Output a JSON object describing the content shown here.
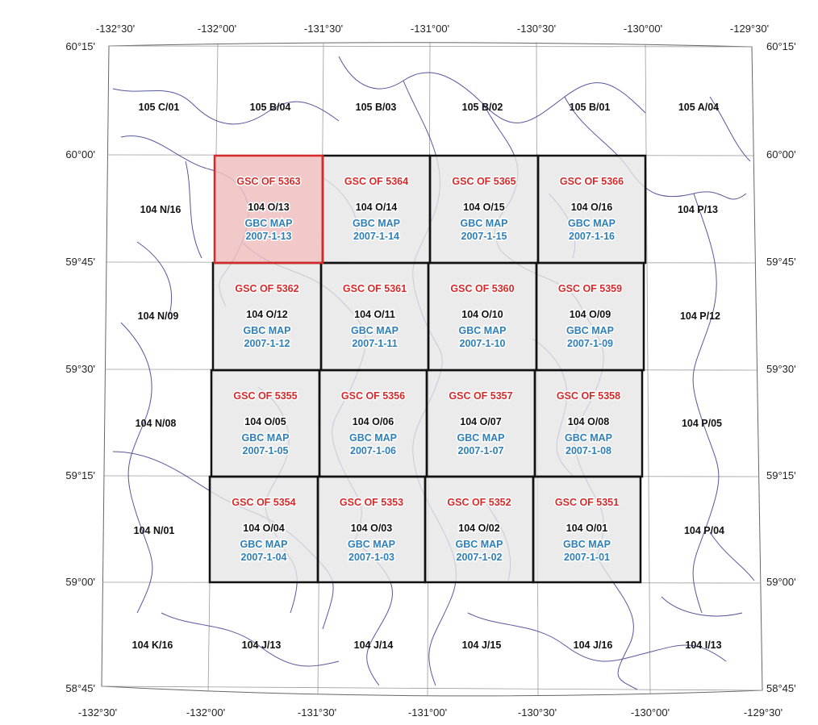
{
  "colors": {
    "tile_fill": "#e6e6e6",
    "selected_fill": "#f0c0c0",
    "selected_border": "#d62a2a",
    "tile_border": "#111111",
    "rivers": "#3a3a8c",
    "gsc_text": "#d62a2a",
    "gbc_text": "#2f7fb8"
  },
  "top_longitudes": [
    "-132°30'",
    "-132°00'",
    "-131°30'",
    "-131°00'",
    "-130°30'",
    "-130°00'",
    "-129°30'"
  ],
  "bottom_longitudes": [
    "-132°30'",
    "-132°00'",
    "-131°30'",
    "-131°00'",
    "-130°30'",
    "-130°00'",
    "-129°30'"
  ],
  "latitudes": [
    "60°15'",
    "60°00'",
    "59°45'",
    "59°30'",
    "59°15'",
    "59°00'",
    "58°45'"
  ],
  "outer_sheets": {
    "top": [
      "105 C/01",
      "105 B/04",
      "105 B/03",
      "105 B/02",
      "105 B/01",
      "105 A/04"
    ],
    "bottom": [
      "104 K/16",
      "104 J/13",
      "104 J/14",
      "104 J/15",
      "104 J/16",
      "104 I/13"
    ],
    "left": [
      "104 N/16",
      "104 N/09",
      "104 N/08",
      "104 N/01"
    ],
    "right": [
      "104 P/13",
      "104 P/12",
      "104 P/05",
      "104 P/04"
    ]
  },
  "tiles": [
    [
      {
        "gsc": "GSC OF 5363",
        "nts": "104 O/13",
        "gbc1": "GBC MAP",
        "gbc2": "2007-1-13",
        "selected": true
      },
      {
        "gsc": "GSC OF 5364",
        "nts": "104 O/14",
        "gbc1": "GBC MAP",
        "gbc2": "2007-1-14"
      },
      {
        "gsc": "GSC OF 5365",
        "nts": "104 O/15",
        "gbc1": "GBC MAP",
        "gbc2": "2007-1-15"
      },
      {
        "gsc": "GSC OF 5366",
        "nts": "104 O/16",
        "gbc1": "GBC MAP",
        "gbc2": "2007-1-16"
      }
    ],
    [
      {
        "gsc": "GSC OF 5362",
        "nts": "104 O/12",
        "gbc1": "GBC MAP",
        "gbc2": "2007-1-12"
      },
      {
        "gsc": "GSC OF 5361",
        "nts": "104 O/11",
        "gbc1": "GBC MAP",
        "gbc2": "2007-1-11"
      },
      {
        "gsc": "GSC OF 5360",
        "nts": "104 O/10",
        "gbc1": "GBC MAP",
        "gbc2": "2007-1-10"
      },
      {
        "gsc": "GSC OF 5359",
        "nts": "104 O/09",
        "gbc1": "GBC MAP",
        "gbc2": "2007-1-09"
      }
    ],
    [
      {
        "gsc": "GSC OF 5355",
        "nts": "104 O/05",
        "gbc1": "GBC MAP",
        "gbc2": "2007-1-05"
      },
      {
        "gsc": "GSC OF 5356",
        "nts": "104 O/06",
        "gbc1": "GBC MAP",
        "gbc2": "2007-1-06"
      },
      {
        "gsc": "GSC OF 5357",
        "nts": "104 O/07",
        "gbc1": "GBC MAP",
        "gbc2": "2007-1-07"
      },
      {
        "gsc": "GSC OF 5358",
        "nts": "104 O/08",
        "gbc1": "GBC MAP",
        "gbc2": "2007-1-08"
      }
    ],
    [
      {
        "gsc": "GSC OF 5354",
        "nts": "104 O/04",
        "gbc1": "GBC MAP",
        "gbc2": "2007-1-04"
      },
      {
        "gsc": "GSC OF 5353",
        "nts": "104 O/03",
        "gbc1": "GBC MAP",
        "gbc2": "2007-1-03"
      },
      {
        "gsc": "GSC OF 5352",
        "nts": "104 O/02",
        "gbc1": "GBC MAP",
        "gbc2": "2007-1-02"
      },
      {
        "gsc": "GSC OF 5351",
        "nts": "104 O/01",
        "gbc1": "GBC MAP",
        "gbc2": "2007-1-01"
      }
    ]
  ]
}
